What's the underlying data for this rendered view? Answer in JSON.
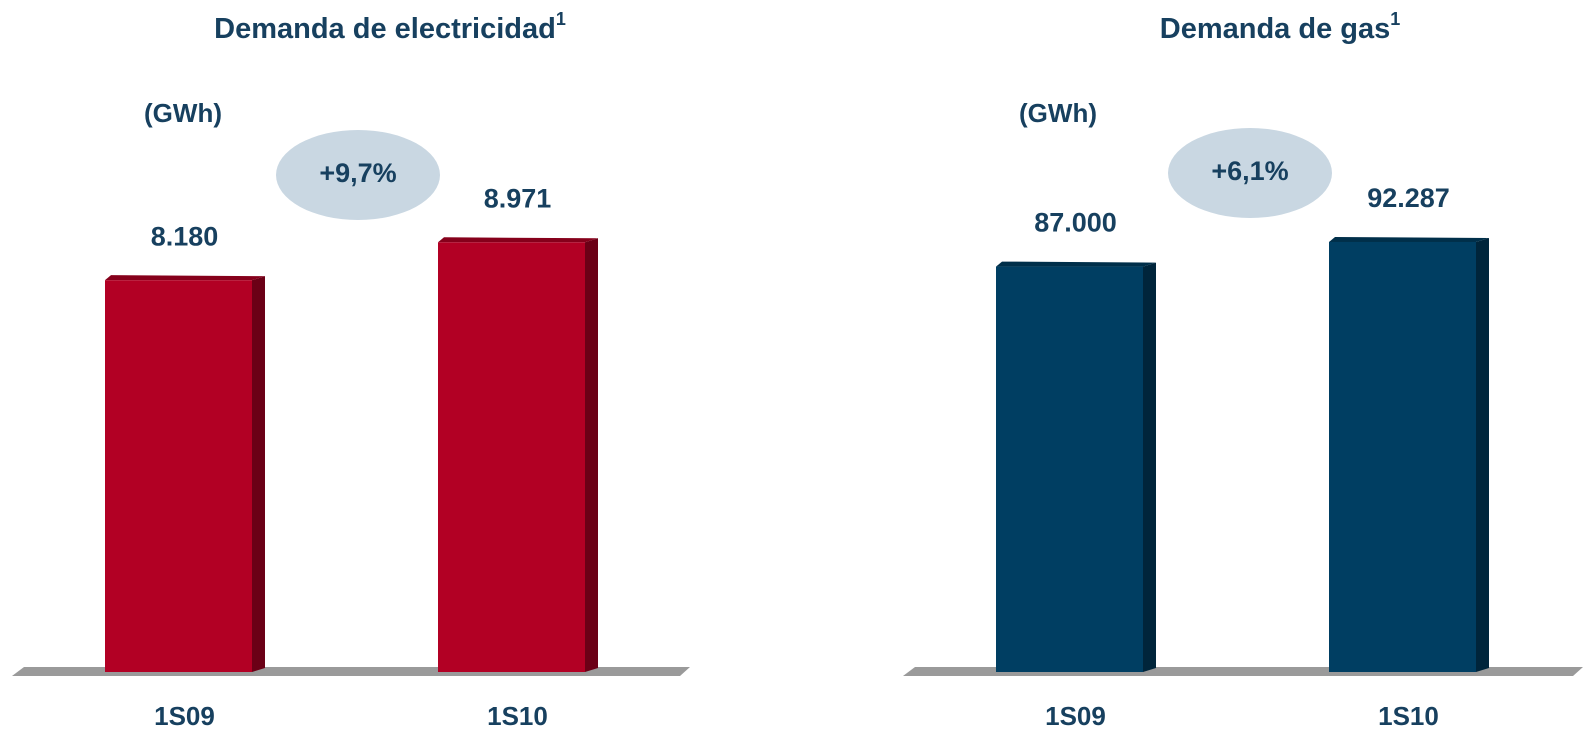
{
  "chart_data": [
    {
      "type": "bar",
      "title": "Demanda de electricidad",
      "title_note": "1",
      "y_label": "(GWh)",
      "annotation": "+9,7%",
      "categories": [
        "1S09",
        "1S10"
      ],
      "values": [
        8180,
        8971
      ],
      "value_labels": [
        "8.180",
        "8.971"
      ],
      "color": "#b20024",
      "ylim": [
        0,
        10000
      ]
    },
    {
      "type": "bar",
      "title": "Demanda de gas",
      "title_note": "1",
      "y_label": "(GWh)",
      "annotation": "+6,1%",
      "categories": [
        "1S09",
        "1S10"
      ],
      "values": [
        87000,
        92287
      ],
      "value_labels": [
        "87.000",
        "92.287"
      ],
      "color": "#003e62",
      "ylim": [
        0,
        100000
      ]
    }
  ]
}
